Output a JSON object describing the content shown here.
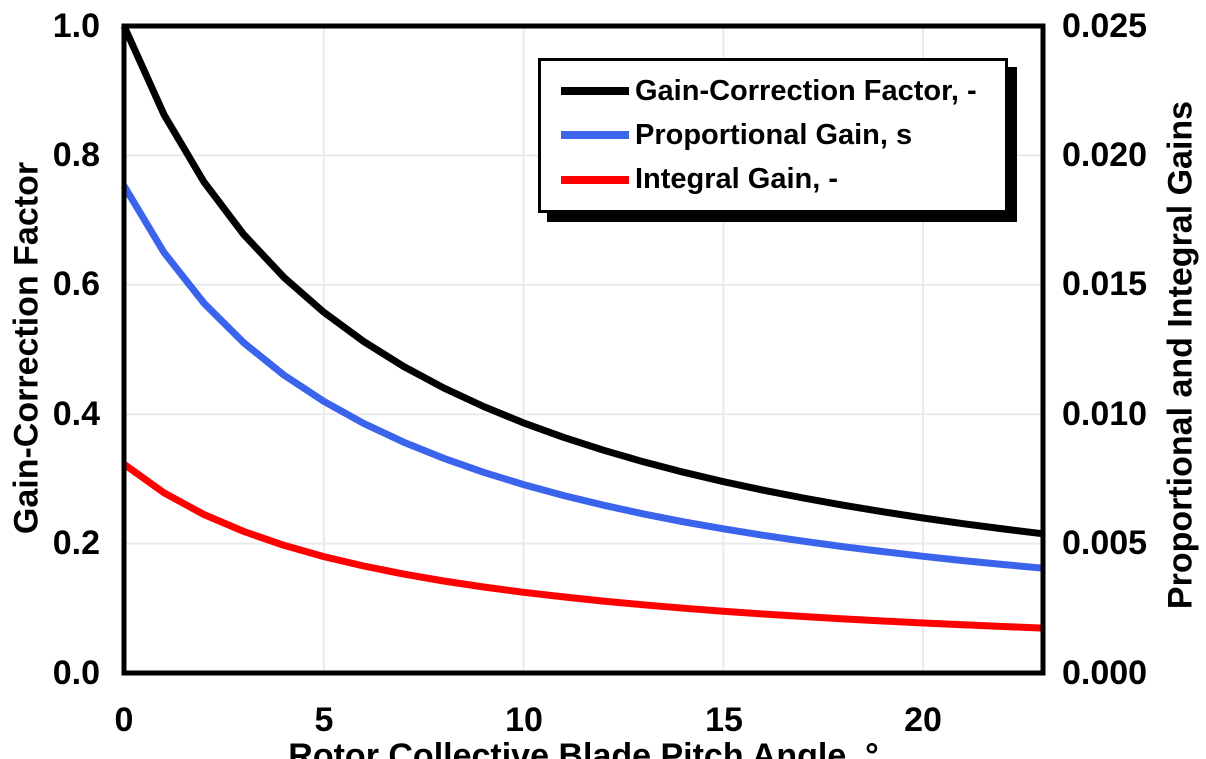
{
  "figure": {
    "background": "#FFFFFF",
    "plot_border_color": "#000000",
    "gridline_color": "#EAEAEA"
  },
  "chart_data": {
    "type": "line",
    "title": "",
    "xlabel": "Rotor Collective Blade Pitch Angle, °",
    "ylabel_left": "Gain-Correction Factor",
    "ylabel_right": "Proportional and Integral Gains",
    "xlim": [
      0,
      23
    ],
    "ylim_left": [
      0.0,
      1.0
    ],
    "ylim_right": [
      0.0,
      0.025
    ],
    "x_ticks": [
      0,
      5,
      10,
      15,
      20
    ],
    "y_ticks_left": [
      "1.0",
      "0.8",
      "0.6",
      "0.4",
      "0.2",
      "0.0"
    ],
    "y_ticks_right": [
      "0.025",
      "0.020",
      "0.015",
      "0.010",
      "0.005",
      "0.000"
    ],
    "grid": true,
    "legend_position": "top-center-inside",
    "x": [
      0,
      1,
      2,
      3,
      4,
      5,
      6,
      7,
      8,
      9,
      10,
      11,
      12,
      13,
      14,
      15,
      16,
      17,
      18,
      19,
      20,
      21,
      22,
      23
    ],
    "series": [
      {
        "name": "Gain-Correction Factor, -",
        "axis": "left",
        "color": "#000000",
        "values": [
          1.0,
          0.8631,
          0.7591,
          0.6775,
          0.6117,
          0.5576,
          0.5123,
          0.4738,
          0.4407,
          0.4119,
          0.3866,
          0.3643,
          0.3444,
          0.3265,
          0.3104,
          0.2959,
          0.2826,
          0.2705,
          0.2593,
          0.2491,
          0.2396,
          0.2308,
          0.2227,
          0.2151
        ]
      },
      {
        "name": "Proportional Gain, s",
        "axis": "right",
        "color": "#3B64EC",
        "values": [
          0.018827,
          0.016249,
          0.014291,
          0.012755,
          0.011516,
          0.010498,
          0.009645,
          0.00892,
          0.008297,
          0.007755,
          0.007278,
          0.006859,
          0.006484,
          0.006147,
          0.005844,
          0.005571,
          0.00532,
          0.005093,
          0.004882,
          0.00469,
          0.004511,
          0.004345,
          0.004193,
          0.00405
        ]
      },
      {
        "name": "Integral Gain, -",
        "axis": "right",
        "color": "#FF0000",
        "values": [
          0.008069,
          0.006964,
          0.006125,
          0.005467,
          0.004936,
          0.004499,
          0.004134,
          0.003823,
          0.003556,
          0.003323,
          0.003119,
          0.002939,
          0.002779,
          0.002634,
          0.002504,
          0.002388,
          0.00228,
          0.002183,
          0.002092,
          0.00201,
          0.001933,
          0.001862,
          0.001797,
          0.001736
        ]
      }
    ]
  }
}
